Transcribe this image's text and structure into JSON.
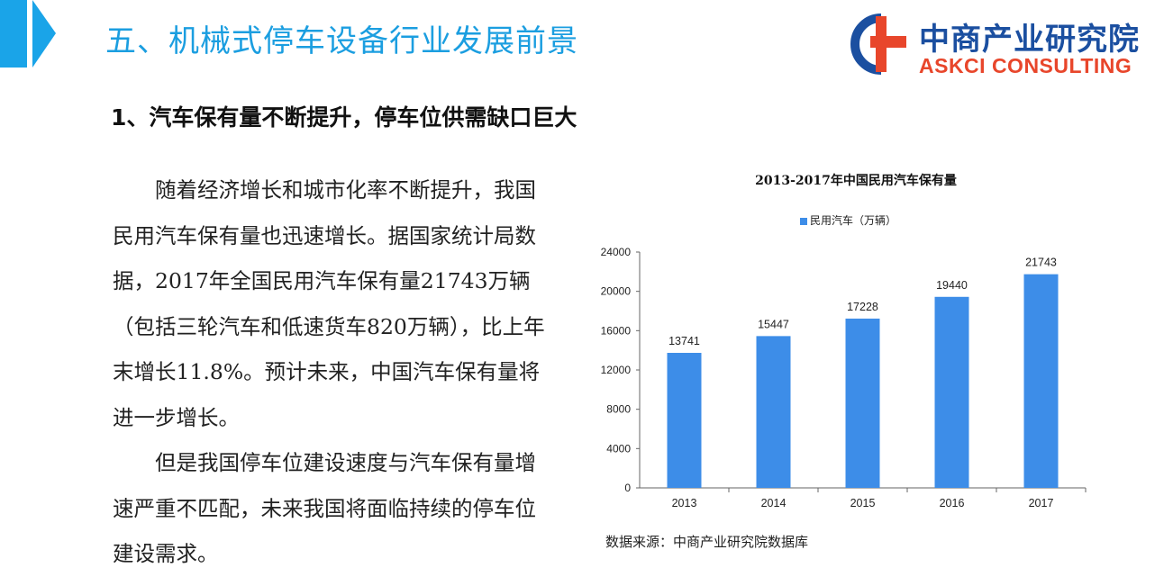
{
  "header": {
    "title": "五、机械式停车设备行业发展前景",
    "accent_color": "#1aa4e8"
  },
  "logo": {
    "name_cn": "中商产业研究院",
    "name_en": "ASKCI CONSULTING",
    "primary_color": "#1b4fa0",
    "secondary_color": "#e8462b"
  },
  "section": {
    "heading": "1、汽车保有量不断提升，停车位供需缺口巨大"
  },
  "body": {
    "paragraph1": "随着经济增长和城市化率不断提升，我国民用汽车保有量也迅速增长。据国家统计局数据，2017年全国民用汽车保有量21743万辆（包括三轮汽车和低速货车820万辆），比上年末增长11.8%。预计未来，中国汽车保有量将进一步增长。",
    "paragraph2": "但是我国停车位建设速度与汽车保有量增速严重不匹配，未来我国将面临持续的停车位建设需求。"
  },
  "chart_data": {
    "type": "bar",
    "title": "2013-2017年中国民用汽车保有量",
    "categories": [
      "2013",
      "2014",
      "2015",
      "2016",
      "2017"
    ],
    "series": [
      {
        "name": "民用汽车（万辆）",
        "values": [
          13741,
          15447,
          17228,
          19440,
          21743
        ],
        "color": "#3d8de8"
      }
    ],
    "y_ticks": [
      "0",
      "4000",
      "8000",
      "12000",
      "16000",
      "20000",
      "24000"
    ],
    "ylim": [
      0,
      24000
    ],
    "legend_position": "top",
    "grid": false
  },
  "source": "数据来源：中商产业研究院数据库"
}
